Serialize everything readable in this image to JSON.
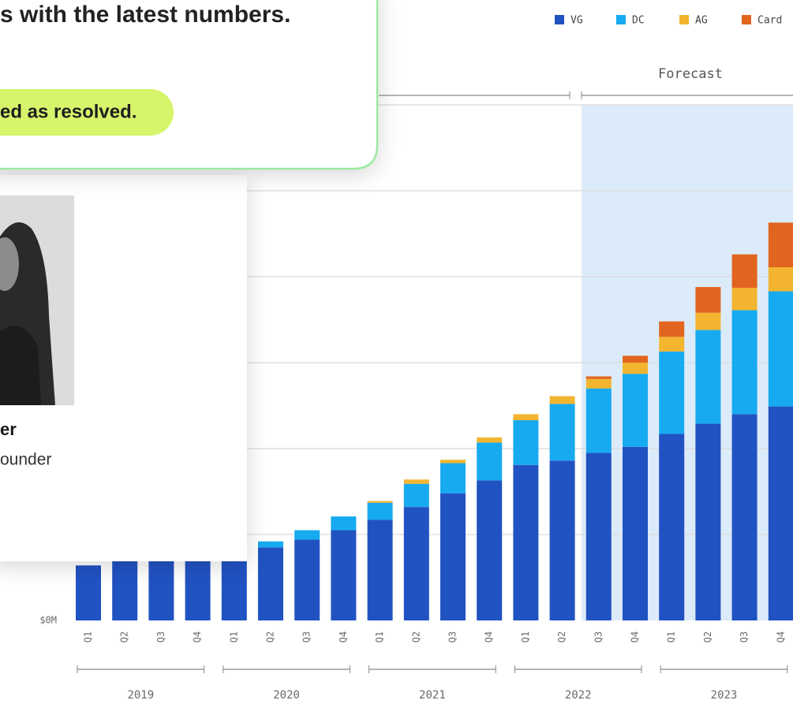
{
  "overlay": {
    "message": "s with the latest numbers.",
    "status": "ed as resolved.",
    "person_name": "er",
    "person_role": "ounder"
  },
  "chart_data": {
    "type": "bar",
    "stacked": true,
    "forecast_label": "Forecast",
    "categories": [
      "Q1",
      "Q2",
      "Q3",
      "Q4",
      "Q1",
      "Q2",
      "Q3",
      "Q4",
      "Q1",
      "Q2",
      "Q3",
      "Q4",
      "Q1",
      "Q2",
      "Q3",
      "Q4",
      "Q1",
      "Q2",
      "Q3",
      "Q4"
    ],
    "years": [
      "2019",
      "2020",
      "2021",
      "2022",
      "2023"
    ],
    "series": [
      {
        "name": "VG",
        "color": "#2152c2",
        "values": [
          0.64,
          0.69,
          0.69,
          0.69,
          0.69,
          0.85,
          0.94,
          1.05,
          1.17,
          1.32,
          1.48,
          1.63,
          1.81,
          1.86,
          1.95,
          2.02,
          2.17,
          2.29,
          2.4,
          2.49
        ]
      },
      {
        "name": "DC",
        "color": "#17aaf0",
        "values": [
          0,
          0,
          0,
          0,
          0,
          0.07,
          0.11,
          0.16,
          0.2,
          0.27,
          0.35,
          0.44,
          0.52,
          0.66,
          0.75,
          0.85,
          0.96,
          1.09,
          1.21,
          1.34
        ]
      },
      {
        "name": "AG",
        "color": "#f3b530",
        "values": [
          0,
          0,
          0,
          0,
          0,
          0,
          0,
          0,
          0.02,
          0.05,
          0.04,
          0.06,
          0.07,
          0.09,
          0.11,
          0.13,
          0.17,
          0.2,
          0.26,
          0.28
        ]
      },
      {
        "name": "Card",
        "color": "#e2651f",
        "values": [
          0,
          0,
          0,
          0,
          0,
          0,
          0,
          0,
          0,
          0,
          0,
          0,
          0,
          0,
          0.03,
          0.08,
          0.18,
          0.3,
          0.39,
          0.52
        ]
      }
    ],
    "ylim": [
      0,
      6
    ],
    "yticks": [
      {
        "value": 0,
        "label": "$0M"
      }
    ],
    "ygrid": [
      1,
      2,
      3,
      4,
      5,
      6
    ],
    "grid": true
  }
}
